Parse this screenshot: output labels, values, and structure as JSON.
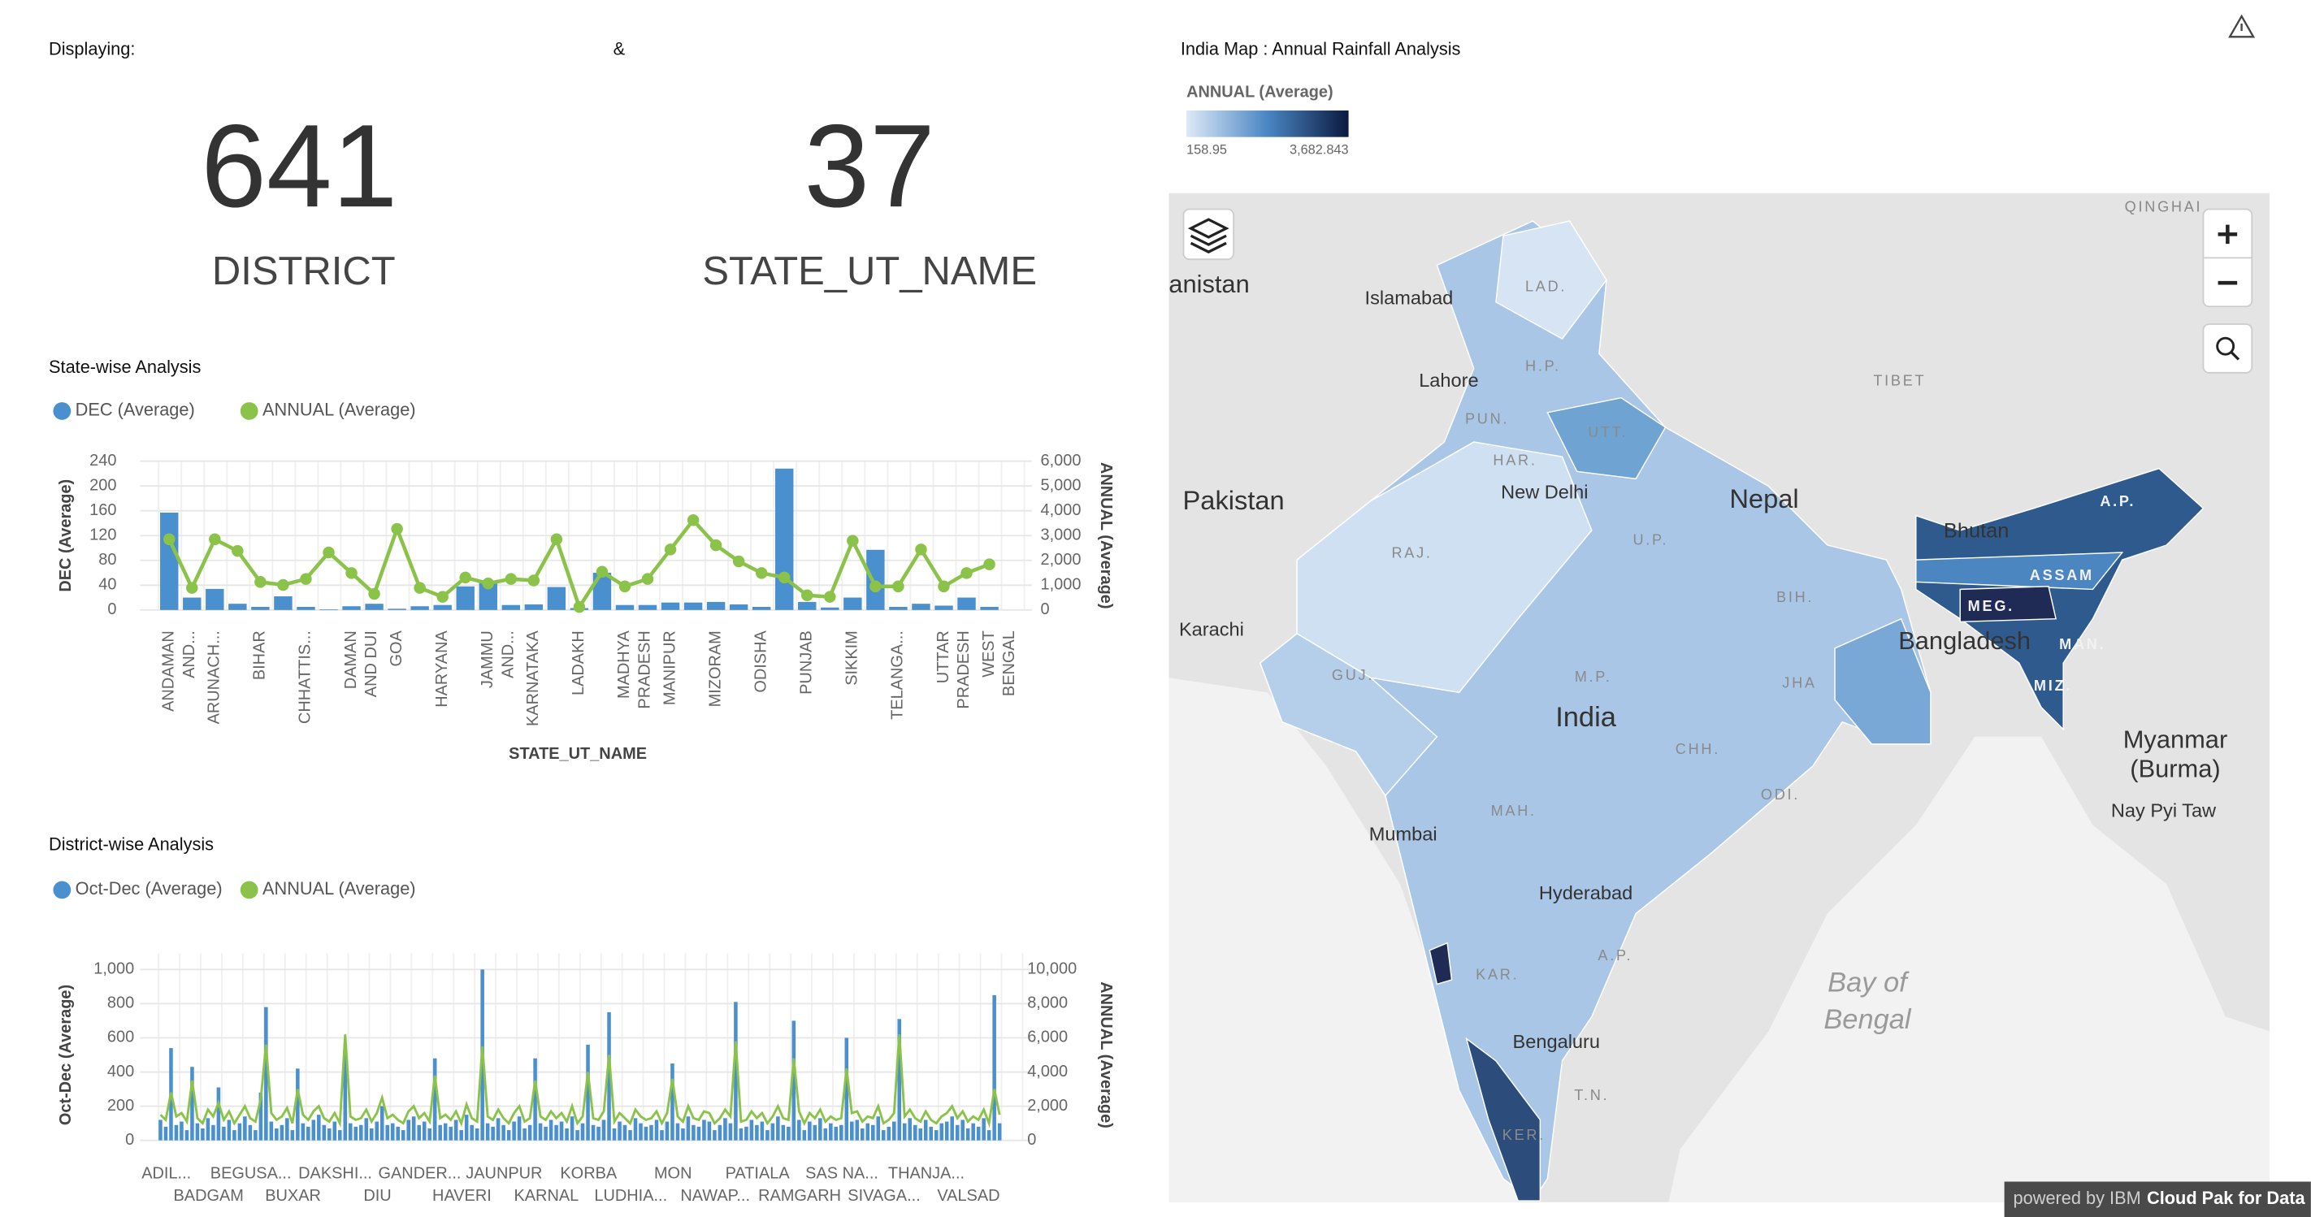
{
  "header": {
    "displaying": "Displaying:",
    "separator": "&"
  },
  "kpis": [
    {
      "value": 641,
      "label": "DISTRICT"
    },
    {
      "value": 37,
      "label": "STATE_UT_NAME"
    }
  ],
  "chart_data": [
    {
      "type": "bar_line",
      "title": "State-wise Analysis",
      "xlabel": "STATE_UT_NAME",
      "ylabel": "DEC (Average)",
      "y2label": "ANNUAL (Average)",
      "categories": [
        "ANDAMAN AND...",
        null,
        "ARUNACH...",
        null,
        "BIHAR",
        null,
        "CHHATTIS...",
        null,
        "DAMAN AND DUI",
        null,
        "GOA",
        null,
        "HARYANA",
        null,
        "JAMMU AND...",
        null,
        "KARNATAKA",
        null,
        "LADAKH",
        null,
        "MADHYA PRADESH",
        null,
        "MANIPUR",
        null,
        "MIZORAM",
        null,
        "ODISHA",
        null,
        "PUNJAB",
        null,
        "SIKKIM",
        null,
        "TELANGA...",
        null,
        "UTTAR PRADESH",
        null,
        "WEST BENGAL"
      ],
      "series": [
        {
          "name": "DEC (Average)",
          "color": "#4a90cf",
          "type": "bar",
          "values": [
            157,
            20,
            34,
            10,
            5,
            22,
            5,
            1,
            6,
            10,
            2,
            6,
            8,
            38,
            45,
            8,
            9,
            37,
            3,
            60,
            8,
            8,
            12,
            12,
            13,
            9,
            5,
            228,
            13,
            4,
            20,
            97,
            5,
            10,
            7,
            20,
            5
          ]
        },
        {
          "name": "ANNUAL (Average)",
          "color": "#8bc34a",
          "type": "line",
          "axis": "y2",
          "values": [
            2850,
            890,
            2850,
            2380,
            1130,
            1010,
            1250,
            2320,
            1490,
            650,
            3270,
            890,
            530,
            1310,
            1070,
            1250,
            1190,
            2850,
            120,
            1540,
            950,
            1250,
            2440,
            3620,
            2610,
            1960,
            1490,
            1310,
            590,
            530,
            2790,
            950,
            950,
            2440,
            950,
            1490,
            1840
          ]
        }
      ],
      "ylim": [
        0,
        240
      ],
      "yticks": [
        0,
        40,
        80,
        120,
        160,
        200,
        240
      ],
      "y2lim": [
        0,
        6000
      ],
      "y2ticks": [
        0,
        {
          "value": 1000,
          "label": "1,000"
        },
        {
          "value": 2000,
          "label": "2,000"
        },
        {
          "value": 3000,
          "label": "3,000"
        },
        {
          "value": 4000,
          "label": "4,000"
        },
        {
          "value": 5000,
          "label": "5,000"
        },
        {
          "value": 6000,
          "label": "6,000"
        }
      ],
      "grid": true,
      "legend": "top-left"
    },
    {
      "type": "bar_line",
      "title": "District-wise Analysis",
      "ylabel": "Oct-Dec (Average)",
      "y2label": "ANNUAL (Average)",
      "categories": [
        "ADIL...",
        null,
        null,
        null,
        null,
        null,
        null,
        null,
        "BADGAM",
        null,
        null,
        null,
        null,
        null,
        null,
        null,
        "BEGUSA...",
        null,
        null,
        null,
        null,
        null,
        null,
        null,
        "BUXAR",
        null,
        null,
        null,
        null,
        null,
        null,
        null,
        "DAKSHI...",
        null,
        null,
        null,
        null,
        null,
        null,
        null,
        "DIU",
        null,
        null,
        null,
        null,
        null,
        null,
        null,
        "GANDER...",
        null,
        null,
        null,
        null,
        null,
        null,
        null,
        "HAVERI",
        null,
        null,
        null,
        null,
        null,
        null,
        null,
        "JAUNPUR",
        null,
        null,
        null,
        null,
        null,
        null,
        null,
        "KARNAL",
        null,
        null,
        null,
        null,
        null,
        null,
        null,
        "KORBA",
        null,
        null,
        null,
        null,
        null,
        null,
        null,
        "LUDHIA...",
        null,
        null,
        null,
        null,
        null,
        null,
        null,
        "MON",
        null,
        null,
        null,
        null,
        null,
        null,
        null,
        "NAWAP...",
        null,
        null,
        null,
        null,
        null,
        null,
        null,
        "PATIALA",
        null,
        null,
        null,
        null,
        null,
        null,
        null,
        "RAMGARH",
        null,
        null,
        null,
        null,
        null,
        null,
        null,
        "SAS NA...",
        null,
        null,
        null,
        null,
        null,
        null,
        null,
        "SIVAGA...",
        null,
        null,
        null,
        null,
        null,
        null,
        null,
        "THANJA...",
        null,
        null,
        null,
        null,
        null,
        null,
        null,
        "VALSAD",
        null,
        null,
        null,
        null,
        null,
        null,
        null
      ],
      "series": [
        {
          "name": "Oct-Dec (Average)",
          "color": "#4a90cf",
          "type": "bar",
          "values": [
            120,
            80,
            540,
            90,
            110,
            60,
            430,
            100,
            70,
            130,
            90,
            310,
            80,
            120,
            60,
            100,
            140,
            90,
            60,
            280,
            780,
            110,
            70,
            90,
            130,
            60,
            420,
            100,
            80,
            120,
            150,
            90,
            70,
            110,
            60,
            560,
            100,
            80,
            90,
            130,
            70,
            110,
            200,
            90,
            100,
            80,
            60,
            120,
            140,
            90,
            110,
            70,
            480,
            90,
            100,
            80,
            120,
            60,
            150,
            90,
            70,
            1000,
            100,
            80,
            130,
            90,
            60,
            110,
            140,
            70,
            90,
            480,
            100,
            80,
            120,
            90,
            110,
            70,
            140,
            60,
            100,
            560,
            90,
            80,
            120,
            750,
            70,
            110,
            90,
            60,
            130,
            100,
            80,
            90,
            120,
            60,
            110,
            450,
            100,
            70,
            140,
            90,
            80,
            120,
            110,
            60,
            90,
            130,
            100,
            810,
            70,
            80,
            120,
            90,
            110,
            60,
            100,
            140,
            90,
            80,
            700,
            120,
            60,
            110,
            90,
            130,
            70,
            100,
            80,
            90,
            600,
            110,
            120,
            70,
            100,
            90,
            140,
            60,
            80,
            110,
            710,
            100,
            130,
            90,
            70,
            120,
            80,
            60,
            100,
            110,
            140,
            90,
            120,
            70,
            100,
            80,
            130,
            60,
            850,
            100
          ]
        },
        {
          "name": "ANNUAL (Average)",
          "color": "#8bc34a",
          "type": "line",
          "axis": "y2",
          "values": [
            1500,
            1200,
            2800,
            1400,
            1600,
            1100,
            3500,
            1300,
            1000,
            1800,
            1400,
            2200,
            1200,
            1700,
            1000,
            1500,
            2000,
            1300,
            1100,
            2400,
            5600,
            1600,
            1200,
            1400,
            1900,
            1000,
            3000,
            1500,
            1200,
            1700,
            2000,
            1300,
            1100,
            1600,
            1000,
            6200,
            1400,
            1200,
            1300,
            1800,
            1100,
            1600,
            2500,
            1300,
            1500,
            1200,
            1000,
            1700,
            2000,
            1300,
            1600,
            1100,
            3800,
            1300,
            1500,
            1200,
            1700,
            1000,
            2100,
            1300,
            1100,
            5500,
            1400,
            1200,
            1800,
            1300,
            1000,
            1600,
            2000,
            1100,
            1300,
            3500,
            1400,
            1200,
            1700,
            1300,
            1600,
            1100,
            2000,
            1000,
            1400,
            4000,
            1300,
            1200,
            1700,
            5000,
            1100,
            1600,
            1300,
            1000,
            1800,
            1400,
            1200,
            1300,
            1700,
            1000,
            1600,
            3600,
            1400,
            1100,
            2000,
            1300,
            1200,
            1700,
            1600,
            1000,
            1300,
            1800,
            1400,
            5800,
            1100,
            1200,
            1700,
            1300,
            1600,
            1000,
            1400,
            2000,
            1300,
            1200,
            4800,
            1700,
            1000,
            1600,
            1300,
            1800,
            1100,
            1400,
            1200,
            1300,
            4200,
            1600,
            1700,
            1100,
            1400,
            1300,
            2000,
            1000,
            1200,
            1600,
            6200,
            1400,
            1800,
            1300,
            1100,
            1700,
            1200,
            1000,
            1400,
            1600,
            2000,
            1300,
            1700,
            1100,
            1400,
            1200,
            1800,
            1000,
            3000,
            1500
          ]
        }
      ],
      "ylim": [
        0,
        1000
      ],
      "yticks": [
        0,
        200,
        400,
        600,
        800,
        {
          "value": 1000,
          "label": "1,000"
        }
      ],
      "y2lim": [
        0,
        10000
      ],
      "y2ticks": [
        0,
        {
          "value": 2000,
          "label": "2,000"
        },
        {
          "value": 4000,
          "label": "4,000"
        },
        {
          "value": 6000,
          "label": "6,000"
        },
        {
          "value": 8000,
          "label": "8,000"
        },
        {
          "value": 10000,
          "label": "10,000"
        }
      ],
      "grid": true,
      "legend": "top-left"
    }
  ],
  "map": {
    "title": "India Map : Annual Rainfall Analysis",
    "legend_title": "ANNUAL (Average)",
    "legend_min": {
      "value": 158.95,
      "label": "158.95"
    },
    "legend_max": {
      "value": 3682.843,
      "label": "3,682.843"
    },
    "places": [
      "anistan",
      "Islamabad",
      "Lahore",
      "Pakistan",
      "New Delhi",
      "Nepal",
      "Bhutan",
      "Karachi",
      "Bangladesh",
      "India",
      "Myanmar",
      "(Burma)",
      "Nay Pyi Taw",
      "Mumbai",
      "Hyderabad",
      "Bay of",
      "Bengal",
      "Bengaluru",
      "TIBET",
      "QINGHAI"
    ],
    "regions": [
      "LAD.",
      "H.P.",
      "UTT.",
      "PUN.",
      "HAR.",
      "RAJ.",
      "U.P.",
      "BIH.",
      "GUJ.",
      "M.P.",
      "JHA",
      "CHH.",
      "ODI.",
      "MAH.",
      "A.P.",
      "KAR.",
      "T.N.",
      "KER.",
      "A.P.",
      "ASSAM",
      "MEG.",
      "MAN.",
      "MIZ."
    ]
  },
  "footer": {
    "powered_by": "powered by IBM",
    "product": "Cloud Pak for Data"
  }
}
